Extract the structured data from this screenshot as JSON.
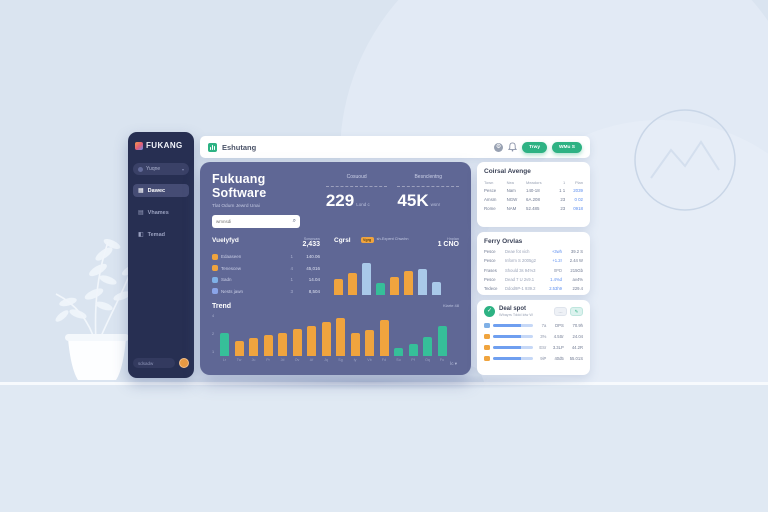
{
  "palette": {
    "teal": "#2db283",
    "orange": "#f0a43e",
    "lightblue": "#a9c9e9",
    "green": "#36bf99",
    "blue": "#7fb0e6",
    "panel": "#5f6795",
    "sidebar": "#272f52",
    "link_blue": "#5b8def"
  },
  "sidebar": {
    "logo": "FUKANG",
    "items": [
      {
        "label": "Yuqne"
      },
      {
        "label": "Dawec",
        "active": true
      },
      {
        "label": "Vhames"
      },
      {
        "label": "Temad"
      }
    ],
    "footer_label": "sdsadw"
  },
  "topbar": {
    "title": "Eshutang",
    "button_primary": "Trwy",
    "button_secondary": "WMu S"
  },
  "main": {
    "title": "Fukuang Software",
    "subtitle": "Tlat Odum Jewrd Unai",
    "search_placeholder": "wmnsdi",
    "stats": [
      {
        "label": "Cosuoud",
        "value": "229",
        "suffix": "Lond c"
      },
      {
        "label": "Besnclentng",
        "value": "45K",
        "suffix": "wsnr"
      }
    ],
    "weekly": {
      "title": "Vuelyfyd",
      "meta_label": "Sowpsaw",
      "meta_value": "2,433",
      "rows": [
        {
          "color": "#f0a43e",
          "label": "Edaaseen",
          "v1": "1",
          "v2": "140.06"
        },
        {
          "color": "#f0a43e",
          "label": "Tenescew",
          "v1": "4",
          "v2": "45,016"
        },
        {
          "color": "#7fb0e6",
          "label": "Sadn",
          "v1": "1",
          "v2": "14.04"
        },
        {
          "color": "#8aa4e8",
          "label": "Nests jawn",
          "v1": "3",
          "v2": "8,504"
        }
      ]
    },
    "chart_section": {
      "title": "Cgrsl",
      "legend_chip": "Vgrg",
      "legend_text": "sh-Expent Chwchn",
      "meta_label": "Hnplan",
      "meta_value": "1 CNO"
    },
    "trend": {
      "title": "Trend",
      "meta": "Klarte 48",
      "footer": "lc ▾"
    }
  },
  "right": {
    "cardA": {
      "title": "Coirsal Avenge",
      "headers": [
        "Town",
        "Nea",
        "Meadors",
        "1",
        "Plan"
      ],
      "rows": [
        [
          "Pesce",
          "Nam",
          "140-18",
          "1 1",
          "2039"
        ],
        [
          "Amsm",
          "NGW",
          "6A.208",
          "23",
          "0 02"
        ],
        [
          "Rome",
          "NAM",
          "52.485",
          "23",
          "0918"
        ]
      ]
    },
    "cardB": {
      "title": "Ferry Orvlas",
      "rows": [
        [
          "Pesce",
          "Deae fot vich",
          "+3wh",
          "39.2 S"
        ],
        [
          "Pesce",
          "Inform S 2005g2",
          "+1.2r",
          "2.44 W"
        ],
        [
          "Frases",
          "Should 3s 94%3",
          "0PD",
          "215Gb"
        ],
        [
          "Pesce",
          "Dead 7 U 2v9.1",
          "1.4%d",
          "av4%"
        ],
        [
          "Tedece",
          "Ddod9P-1 939.2",
          "2.53h9",
          "229.4"
        ]
      ]
    },
    "cardC": {
      "title": "Deal spot",
      "subtitle": "Wbayrs Tddd ldw W",
      "button_left": "…",
      "button_right": "✎",
      "check_glyph": "✓",
      "rows": [
        {
          "color": "#7fb0e6",
          "c1": "7a",
          "c2": "DPS",
          "c3": "70.9h"
        },
        {
          "color": "#f0a43e",
          "c1": "3%",
          "c2": "4.5Sr",
          "c3": "24.04"
        },
        {
          "color": "#f0a43e",
          "c1": "ESr",
          "c2": "3.3LP",
          "c3": "44.2R"
        },
        {
          "color": "#f0a43e",
          "c1": "9iP",
          "c2": "40d5",
          "c3": "55.01S"
        }
      ]
    }
  },
  "chart_data": [
    {
      "type": "bar",
      "title": "Cgrsl mini chart",
      "values": [
        40,
        55,
        80,
        30,
        45,
        60,
        65,
        32
      ],
      "colors": [
        "orange",
        "orange",
        "lightblue",
        "green",
        "orange",
        "orange",
        "lightblue",
        "lightblue"
      ],
      "ylim": [
        0,
        100
      ],
      "legend_position": "top"
    },
    {
      "type": "bar",
      "title": "Trend",
      "values": [
        55,
        35,
        42,
        50,
        55,
        65,
        72,
        82,
        90,
        55,
        62,
        85,
        20,
        28,
        45,
        72
      ],
      "colors": [
        "green",
        "orange",
        "orange",
        "orange",
        "orange",
        "orange",
        "orange",
        "orange",
        "orange",
        "orange",
        "orange",
        "orange",
        "green",
        "green",
        "green",
        "green"
      ],
      "x": [
        "Lr",
        "Tw",
        "Ju",
        "Pr",
        "Jd",
        "Ov",
        "Af",
        "Jq",
        "Sg",
        "Iy",
        "Vb",
        "Fd",
        "Su",
        "Pf",
        "Oq",
        "Fu"
      ],
      "yticks": [
        "4",
        "2",
        "1"
      ],
      "ylim": [
        0,
        100
      ],
      "grid": false
    }
  ]
}
